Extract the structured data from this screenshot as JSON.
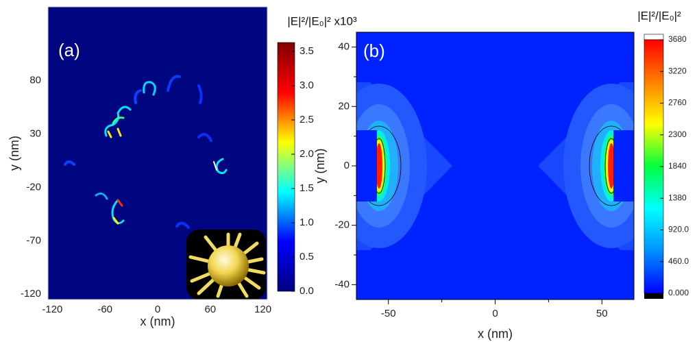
{
  "chart_data": [
    {
      "type": "heatmap",
      "panel_label": "(a)",
      "xlabel": "x (nm)",
      "ylabel": "y (nm)",
      "xlim": [
        -125,
        125
      ],
      "ylim": [
        -125,
        149
      ],
      "xticks": [
        -120,
        -60,
        0,
        60,
        120
      ],
      "yticks": [
        80,
        30,
        -20,
        -70,
        -120
      ],
      "background": "#00067f",
      "colormap": [
        "#00007f",
        "#0000ff",
        "#00ffff",
        "#ffff00",
        "#ff0000",
        "#7f0000"
      ],
      "colorbar": {
        "label": "|E|²/|E₀|² x10³",
        "lim": [
          0,
          3.63
        ],
        "ticks": [
          {
            "value": 0,
            "label": "0.0"
          },
          0.5,
          {
            "value": 1,
            "label": "1.0"
          },
          1.5,
          {
            "value": 2,
            "label": "2.0"
          },
          2.5,
          {
            "value": 3,
            "label": "3.0"
          },
          3.5
        ]
      }
    },
    {
      "type": "heatmap",
      "panel_label": "(b)",
      "xlabel": "x (nm)",
      "ylabel": "y (nm)",
      "xlim": [
        -65,
        65
      ],
      "ylim": [
        -45,
        45
      ],
      "xticks": [
        -50,
        0,
        50
      ],
      "yticks": [
        -40,
        -20,
        0,
        20,
        40
      ],
      "xminorticks": [
        -25,
        25
      ],
      "yminorticks": [
        -30,
        -10,
        10,
        30
      ],
      "background": "#0022ff",
      "colormap": [
        "#0000ff",
        "#0090ff",
        "#00ffff",
        "#00ff40",
        "#ffff00",
        "#ff8000",
        "#ff0000"
      ],
      "colorbar": {
        "label": "|E|²/|E₀|²",
        "lim": [
          0,
          3680
        ],
        "ticks": [
          {
            "value": 0,
            "label": "0.000"
          },
          {
            "value": 460,
            "label": "460.0"
          },
          {
            "value": 920,
            "label": "920.0"
          },
          1380,
          1840,
          2300,
          2760,
          3220,
          3680
        ]
      }
    }
  ]
}
